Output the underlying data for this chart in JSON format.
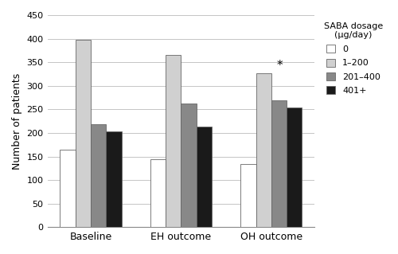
{
  "groups": [
    "Baseline",
    "EH outcome",
    "OH outcome"
  ],
  "series": {
    "0": [
      165,
      145,
      135
    ],
    "1-200": [
      397,
      365,
      326
    ],
    "201-400": [
      219,
      262,
      269
    ],
    "401+": [
      203,
      213,
      254
    ]
  },
  "colors": {
    "0": "#ffffff",
    "1-200": "#d0d0d0",
    "201-400": "#888888",
    "401+": "#1a1a1a"
  },
  "legend_labels": [
    "0",
    "1–200",
    "201–400",
    "401+"
  ],
  "legend_title": "SABA dosage\n(μg/day)",
  "ylabel": "Number of patients",
  "ylim": [
    0,
    450
  ],
  "yticks": [
    0,
    50,
    100,
    150,
    200,
    250,
    300,
    350,
    400,
    450
  ],
  "star_annotation": "*",
  "star_group_index": 2,
  "star_series": "1-200",
  "bar_width": 0.17,
  "edge_color": "#666666"
}
